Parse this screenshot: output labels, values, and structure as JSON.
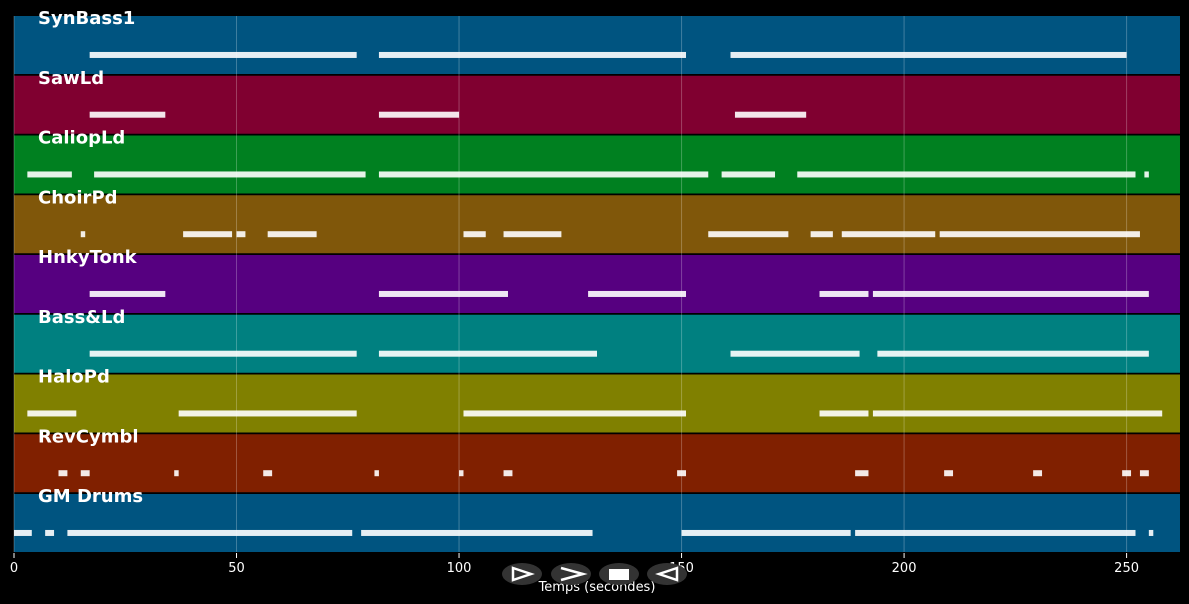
{
  "chart_data": {
    "type": "pianoroll",
    "xlabel": "Temps (secondes)",
    "xlim": [
      0,
      262
    ],
    "xticks": [
      0,
      50,
      100,
      150,
      200,
      250
    ],
    "grid": true,
    "tracks": [
      {
        "name": "SynBass1",
        "color": "#005480",
        "spans": [
          [
            17,
            77
          ],
          [
            82,
            151
          ],
          [
            161,
            250
          ]
        ]
      },
      {
        "name": "SawLd",
        "color": "#800030",
        "spans": [
          [
            17,
            34
          ],
          [
            82,
            100
          ],
          [
            162,
            178
          ]
        ]
      },
      {
        "name": "CaliopLd",
        "color": "#008020",
        "spans": [
          [
            3,
            13
          ],
          [
            18,
            79
          ],
          [
            82,
            156
          ],
          [
            159,
            171
          ],
          [
            176,
            252
          ],
          [
            254,
            255
          ]
        ]
      },
      {
        "name": "ChoirPd",
        "color": "#80570a",
        "spans": [
          [
            15,
            16
          ],
          [
            38,
            49
          ],
          [
            50,
            52
          ],
          [
            57,
            68
          ],
          [
            101,
            106
          ],
          [
            110,
            123
          ],
          [
            156,
            174
          ],
          [
            179,
            184
          ],
          [
            186,
            207
          ],
          [
            208,
            253
          ]
        ]
      },
      {
        "name": "HnkyTonk",
        "color": "#560080",
        "spans": [
          [
            17,
            34
          ],
          [
            82,
            111
          ],
          [
            129,
            151
          ],
          [
            181,
            192
          ],
          [
            193,
            255
          ]
        ]
      },
      {
        "name": "Bass&Ld",
        "color": "#008080",
        "spans": [
          [
            17,
            77
          ],
          [
            82,
            131
          ],
          [
            161,
            190
          ],
          [
            194,
            255
          ]
        ]
      },
      {
        "name": "HaloPd",
        "color": "#808000",
        "spans": [
          [
            3,
            14
          ],
          [
            37,
            77
          ],
          [
            101,
            151
          ],
          [
            181,
            192
          ],
          [
            193,
            258
          ]
        ]
      },
      {
        "name": "RevCymbl",
        "color": "#802000",
        "spans": [
          [
            10,
            12
          ],
          [
            15,
            17
          ],
          [
            36,
            37
          ],
          [
            56,
            58
          ],
          [
            81,
            82
          ],
          [
            100,
            101
          ],
          [
            110,
            112
          ],
          [
            149,
            151
          ],
          [
            189,
            192
          ],
          [
            209,
            211
          ],
          [
            229,
            231
          ],
          [
            249,
            251
          ],
          [
            253,
            255
          ]
        ]
      },
      {
        "name": "GM Drums",
        "color": "#005480",
        "spans": [
          [
            0,
            4
          ],
          [
            7,
            9
          ],
          [
            12,
            76
          ],
          [
            78,
            130
          ],
          [
            150,
            188
          ],
          [
            189,
            252
          ],
          [
            255,
            256
          ]
        ]
      }
    ]
  }
}
